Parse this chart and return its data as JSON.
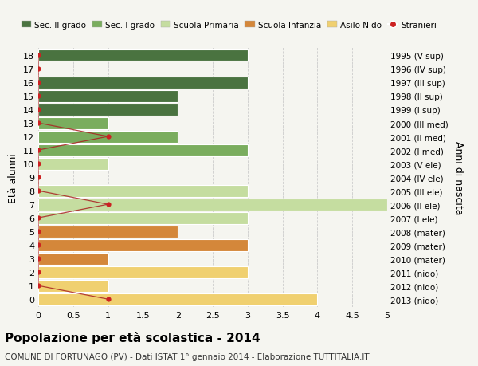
{
  "ages": [
    18,
    17,
    16,
    15,
    14,
    13,
    12,
    11,
    10,
    9,
    8,
    7,
    6,
    5,
    4,
    3,
    2,
    1,
    0
  ],
  "years": [
    "1995 (V sup)",
    "1996 (IV sup)",
    "1997 (III sup)",
    "1998 (II sup)",
    "1999 (I sup)",
    "2000 (III med)",
    "2001 (II med)",
    "2002 (I med)",
    "2003 (V ele)",
    "2004 (IV ele)",
    "2005 (III ele)",
    "2006 (II ele)",
    "2007 (I ele)",
    "2008 (mater)",
    "2009 (mater)",
    "2010 (mater)",
    "2011 (nido)",
    "2012 (nido)",
    "2013 (nido)"
  ],
  "bar_values": [
    3,
    0,
    3,
    2,
    2,
    1,
    2,
    3,
    1,
    0,
    3,
    5,
    3,
    2,
    3,
    1,
    3,
    1,
    4
  ],
  "bar_colors": [
    "#4a7340",
    "#4a7340",
    "#4a7340",
    "#4a7340",
    "#4a7340",
    "#7aad5e",
    "#7aad5e",
    "#7aad5e",
    "#c5dda0",
    "#c5dda0",
    "#c5dda0",
    "#c5dda0",
    "#c5dda0",
    "#d4873a",
    "#d4873a",
    "#d4873a",
    "#f0d070",
    "#f0d070",
    "#f0d070"
  ],
  "stranieri_x": [
    0,
    0,
    0,
    0,
    0,
    0,
    1,
    0,
    0,
    0,
    0,
    1,
    0,
    0,
    0,
    0,
    0,
    0,
    1
  ],
  "legend_labels": [
    "Sec. II grado",
    "Sec. I grado",
    "Scuola Primaria",
    "Scuola Infanzia",
    "Asilo Nido",
    "Stranieri"
  ],
  "legend_colors": [
    "#4a7340",
    "#7aad5e",
    "#c5dda0",
    "#d4873a",
    "#f0d070",
    "#cc2222"
  ],
  "title": "Popolazione per età scolastica - 2014",
  "subtitle": "COMUNE DI FORTUNAGO (PV) - Dati ISTAT 1° gennaio 2014 - Elaborazione TUTTITALIA.IT",
  "ylabel": "Età alunni",
  "ylabel2": "Anni di nascita",
  "xlim": [
    0,
    5.0
  ],
  "xticks": [
    0,
    0.5,
    1.0,
    1.5,
    2.0,
    2.5,
    3.0,
    3.5,
    4.0,
    4.5,
    5.0
  ],
  "background_color": "#f5f5f0",
  "plot_bg_color": "#f5f5f0",
  "grid_color": "#cccccc",
  "bar_height": 0.88
}
